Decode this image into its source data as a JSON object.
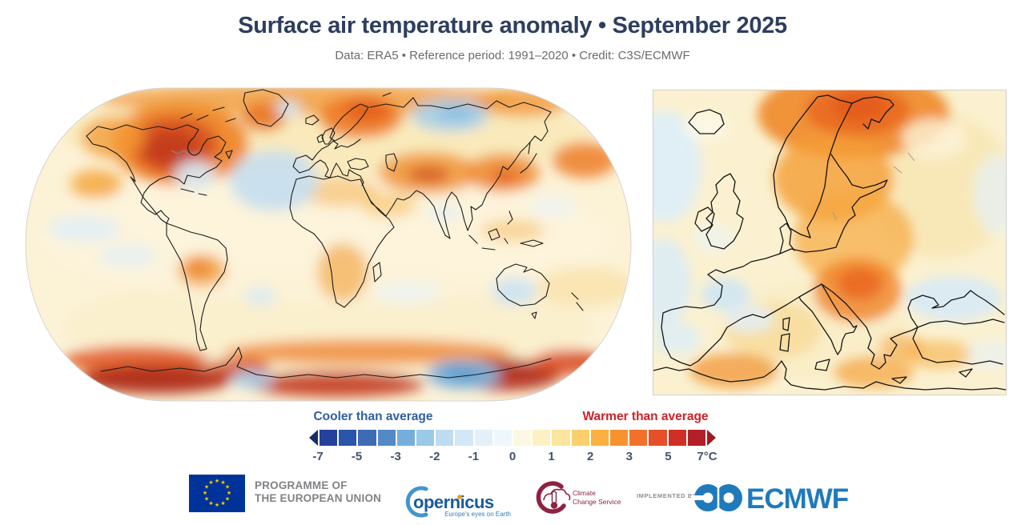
{
  "header": {
    "title": "Surface air temperature anomaly • September 2025",
    "subtitle": "Data: ERA5 • Reference period: 1991–2020 • Credit: C3S/ECMWF"
  },
  "colorbar": {
    "cooler_label": "Cooler than average",
    "warmer_label": "Warmer than average",
    "cooler_color": "#2e5fa3",
    "warmer_color": "#cf2027",
    "unit": "°C",
    "ticks": [
      "-7",
      "-5",
      "-3",
      "-2",
      "-1",
      "0",
      "1",
      "2",
      "3",
      "5",
      "7°C"
    ],
    "arrow_left": "#172f66",
    "arrow_right": "#9d1b23",
    "segments": [
      "#24419b",
      "#2a55aa",
      "#3d6cb5",
      "#5289c6",
      "#76aedb",
      "#9bc9e8",
      "#bddcf2",
      "#d2e8f7",
      "#e3f0fa",
      "#eff7fc",
      "#fdf8e3",
      "#fdf0c3",
      "#fce59c",
      "#fbcf6c",
      "#fbb03f",
      "#f7932f",
      "#f3702b",
      "#e64f28",
      "#cf3024",
      "#b2202a"
    ]
  },
  "maps": {
    "world": {
      "name": "world-temperature-anomaly-map",
      "base": "#fcf2d6",
      "blobs": [
        [
          380,
          60,
          330,
          55,
          "#f7e3a6",
          0.55
        ],
        [
          380,
          300,
          330,
          70,
          "#faeec8",
          0.6
        ],
        [
          380,
          190,
          360,
          80,
          "#fdf6e0",
          0.5
        ],
        [
          195,
          72,
          85,
          52,
          "#ef8226",
          0.9
        ],
        [
          188,
          74,
          55,
          36,
          "#d64f1e",
          0.9
        ],
        [
          183,
          78,
          34,
          22,
          "#c23a1b",
          0.85
        ],
        [
          112,
          64,
          40,
          26,
          "#f39a34",
          0.75
        ],
        [
          350,
          16,
          260,
          20,
          "#f0912e",
          0.7
        ],
        [
          300,
          38,
          28,
          18,
          "#e9701f",
          0.85
        ],
        [
          90,
          122,
          32,
          18,
          "#f5a339",
          0.8
        ],
        [
          420,
          38,
          52,
          26,
          "#ee7a22",
          0.9
        ],
        [
          428,
          30,
          28,
          14,
          "#e45d1c",
          0.85
        ],
        [
          505,
          108,
          62,
          26,
          "#f0902e",
          0.8
        ],
        [
          505,
          110,
          26,
          9,
          "#cf4a1b",
          0.85
        ],
        [
          598,
          108,
          46,
          24,
          "#ef8529",
          0.8
        ],
        [
          600,
          112,
          20,
          10,
          "#e2601e",
          0.75
        ],
        [
          622,
          20,
          58,
          18,
          "#f0912e",
          0.75
        ],
        [
          700,
          92,
          40,
          22,
          "#ee7d25",
          0.85
        ],
        [
          395,
          132,
          48,
          18,
          "#f6b554",
          0.55
        ],
        [
          222,
          230,
          30,
          20,
          "#f29b37",
          0.8
        ],
        [
          218,
          226,
          14,
          9,
          "#e97524",
          0.75
        ],
        [
          398,
          232,
          32,
          36,
          "#f3a442",
          0.65
        ],
        [
          430,
          332,
          180,
          16,
          "#ee7d25",
          0.75
        ],
        [
          140,
          342,
          90,
          18,
          "#e2561e",
          0.85
        ],
        [
          165,
          366,
          95,
          18,
          "#b02a17",
          0.95
        ],
        [
          390,
          372,
          110,
          16,
          "#c33a1e",
          0.9
        ],
        [
          600,
          360,
          70,
          20,
          "#b02a17",
          0.9
        ],
        [
          680,
          345,
          45,
          16,
          "#d8491f",
          0.85
        ],
        [
          268,
          352,
          40,
          12,
          "#d0431d",
          0.8
        ],
        [
          455,
          148,
          35,
          16,
          "#f7c262",
          0.6
        ],
        [
          610,
          180,
          40,
          14,
          "#f6bc58",
          0.5
        ],
        [
          700,
          250,
          60,
          25,
          "#f8d488",
          0.45
        ],
        [
          312,
          118,
          55,
          38,
          "#c6dff1",
          0.9
        ],
        [
          330,
          28,
          16,
          10,
          "#d4e8f6",
          0.9
        ],
        [
          214,
          110,
          26,
          18,
          "#d8eaf7",
          0.9
        ],
        [
          532,
          36,
          48,
          20,
          "#a9d0ea",
          0.9
        ],
        [
          540,
          33,
          24,
          11,
          "#8cc0e3",
          0.85
        ],
        [
          75,
          178,
          45,
          16,
          "#e0eff9",
          0.8
        ],
        [
          130,
          212,
          36,
          14,
          "#e0eff9",
          0.7
        ],
        [
          612,
          256,
          28,
          17,
          "#cbe3f3",
          0.9
        ],
        [
          548,
          360,
          46,
          18,
          "#7fb5dd",
          0.95
        ],
        [
          545,
          358,
          24,
          10,
          "#5d9fd2",
          0.9
        ],
        [
          285,
          366,
          26,
          11,
          "#a5cde9",
          0.9
        ],
        [
          295,
          262,
          20,
          11,
          "#d4e8f6",
          0.8
        ],
        [
          525,
          158,
          20,
          10,
          "#e4f1fa",
          0.8
        ],
        [
          480,
          258,
          42,
          14,
          "#ebf4fb",
          0.7
        ],
        [
          660,
          150,
          30,
          14,
          "#e8f3fb",
          0.6
        ]
      ]
    },
    "europe": {
      "name": "europe-temperature-anomaly-map",
      "base": "#fbf1d0",
      "blobs": [
        [
          360,
          120,
          90,
          90,
          "#f7e3a8",
          0.6
        ],
        [
          200,
          300,
          120,
          60,
          "#faecc0",
          0.5
        ],
        [
          250,
          30,
          120,
          55,
          "#f0882a",
          0.9
        ],
        [
          255,
          25,
          65,
          32,
          "#ea6a1f",
          0.9
        ],
        [
          258,
          20,
          35,
          18,
          "#e35a1c",
          0.85
        ],
        [
          225,
          110,
          75,
          55,
          "#f59e36",
          0.8
        ],
        [
          250,
          185,
          75,
          60,
          "#f6a83f",
          0.7
        ],
        [
          255,
          250,
          55,
          40,
          "#f08428",
          0.8
        ],
        [
          258,
          242,
          28,
          20,
          "#e8641f",
          0.8
        ],
        [
          100,
          350,
          55,
          22,
          "#f29634",
          0.75
        ],
        [
          275,
          352,
          50,
          20,
          "#f5a33c",
          0.7
        ],
        [
          355,
          330,
          45,
          18,
          "#f6b049",
          0.6
        ],
        [
          310,
          320,
          28,
          16,
          "#f5a33c",
          0.55
        ],
        [
          150,
          300,
          60,
          35,
          "#f8cf7c",
          0.5
        ],
        [
          15,
          95,
          45,
          70,
          "#ddeef8",
          0.9
        ],
        [
          12,
          240,
          35,
          55,
          "#daecf7",
          0.85
        ],
        [
          90,
          255,
          30,
          20,
          "#cfe6f4",
          0.9
        ],
        [
          120,
          285,
          30,
          18,
          "#e2f0fa",
          0.8
        ],
        [
          30,
          310,
          30,
          20,
          "#dcedf8",
          0.8
        ],
        [
          375,
          260,
          60,
          28,
          "#d8eaf6",
          0.9
        ],
        [
          430,
          130,
          30,
          50,
          "#e6f2fa",
          0.7
        ],
        [
          75,
          185,
          25,
          18,
          "#e9f3f9",
          0.6
        ],
        [
          65,
          45,
          28,
          16,
          "#fdf8e8",
          0.9
        ],
        [
          420,
          330,
          30,
          18,
          "#e6f2fa",
          0.6
        ],
        [
          350,
          60,
          40,
          25,
          "#fdf4da",
          0.8
        ]
      ]
    }
  },
  "footer": {
    "eu": {
      "line1": "PROGRAMME OF",
      "line2": "THE EUROPEAN UNION",
      "flag_blue": "#003399",
      "star_yellow": "#ffcc00"
    },
    "copernicus": {
      "name": "opernicus",
      "tagline": "Europe's eyes on Earth",
      "blue": "#1a5b9c",
      "arc_blue": "#4395cb"
    },
    "c3s": {
      "line1": "Climate",
      "line2": "Change Service",
      "maroon": "#8e2242"
    },
    "implemented_by": "IMPLEMENTED BY",
    "ecmwf": {
      "name": "ECMWF",
      "blue": "#1f7abc"
    }
  }
}
